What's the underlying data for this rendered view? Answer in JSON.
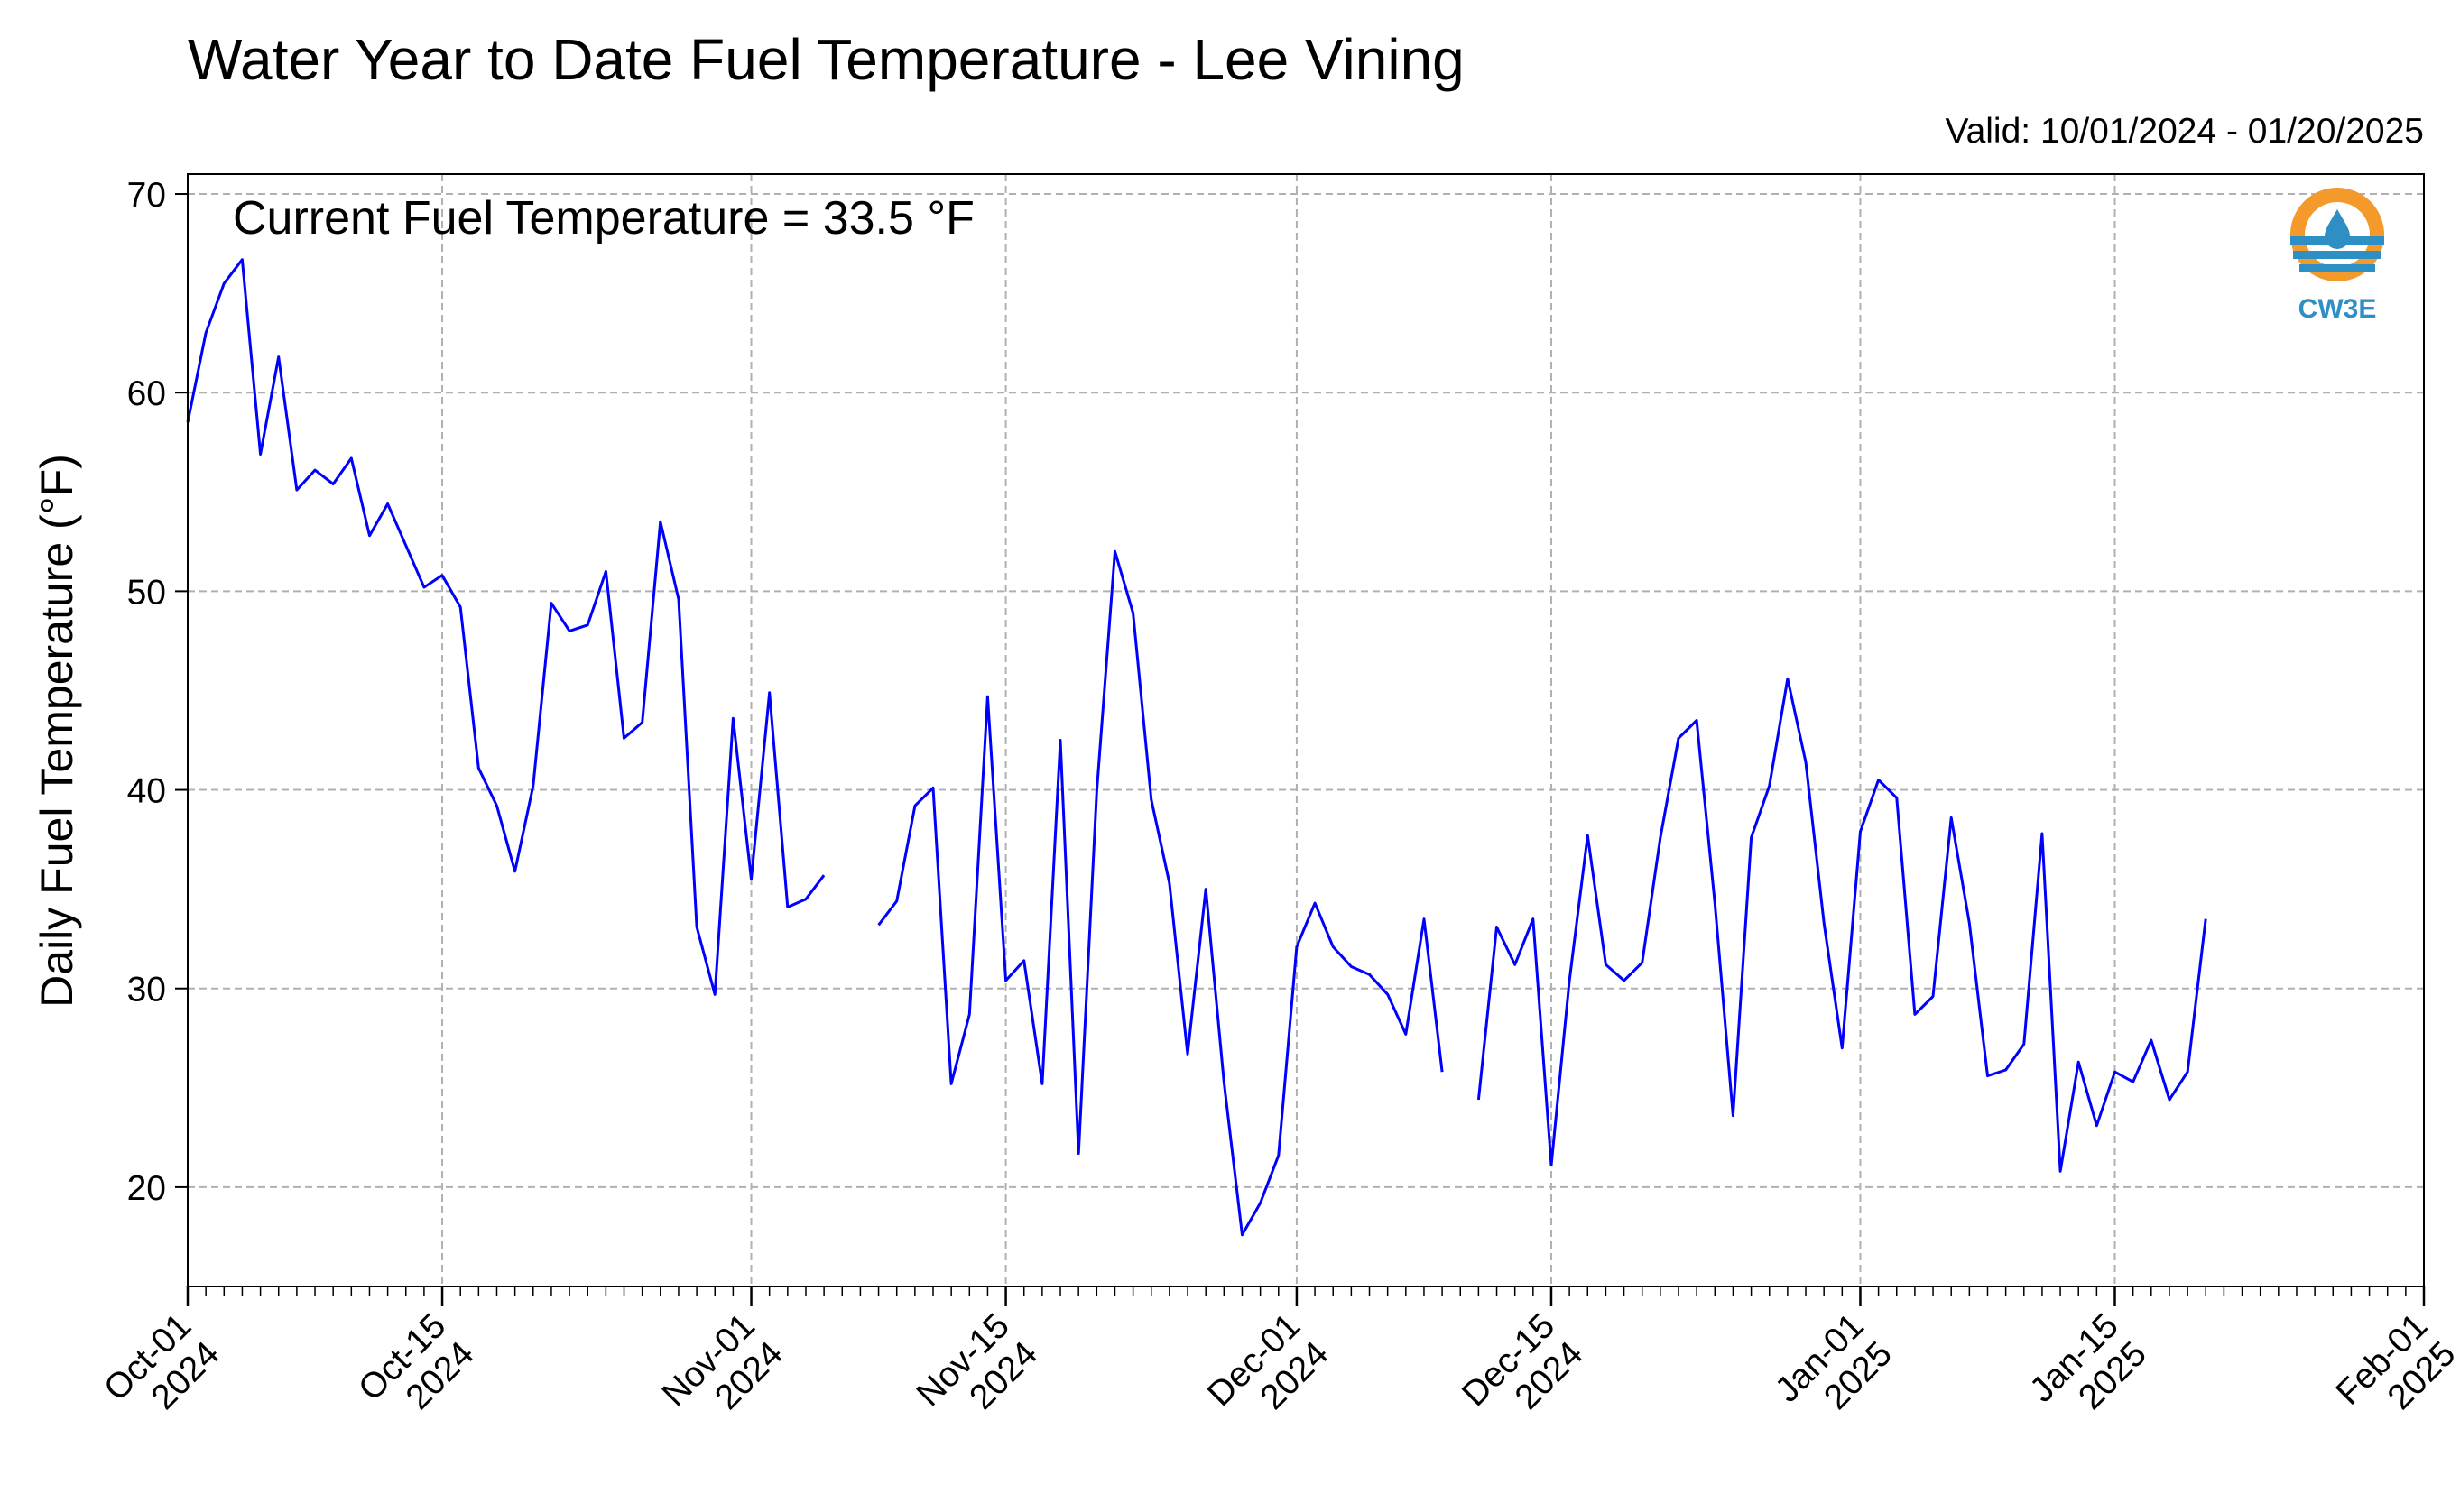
{
  "chart_data": {
    "type": "line",
    "title": "Water Year to Date Fuel Temperature - Lee Vining",
    "subtitle": "Valid: 10/01/2024 - 01/20/2025",
    "annotation": "Current Fuel Temperature = 33.5  °F",
    "ylabel": "Daily Fuel Temperature (°F)",
    "xlabel": "",
    "ylim": [
      15,
      71
    ],
    "xlim": [
      "2024-10-01",
      "2025-02-01"
    ],
    "grid": true,
    "yticks": [
      20,
      30,
      40,
      50,
      60,
      70
    ],
    "xticks": [
      {
        "date": "2024-10-01",
        "label": [
          "Oct-01",
          "2024"
        ]
      },
      {
        "date": "2024-10-15",
        "label": [
          "Oct-15",
          "2024"
        ]
      },
      {
        "date": "2024-11-01",
        "label": [
          "Nov-01",
          "2024"
        ]
      },
      {
        "date": "2024-11-15",
        "label": [
          "Nov-15",
          "2024"
        ]
      },
      {
        "date": "2024-12-01",
        "label": [
          "Dec-01",
          "2024"
        ]
      },
      {
        "date": "2024-12-15",
        "label": [
          "Dec-15",
          "2024"
        ]
      },
      {
        "date": "2025-01-01",
        "label": [
          "Jan-01",
          "2025"
        ]
      },
      {
        "date": "2025-01-15",
        "label": [
          "Jan-15",
          "2025"
        ]
      },
      {
        "date": "2025-02-01",
        "label": [
          "Feb-01",
          "2025"
        ]
      }
    ],
    "line_color": "#0000ff",
    "series": [
      {
        "x": [
          "2024-10-01",
          "2024-10-02",
          "2024-10-03",
          "2024-10-04",
          "2024-10-05",
          "2024-10-06",
          "2024-10-07",
          "2024-10-08",
          "2024-10-09",
          "2024-10-10",
          "2024-10-11",
          "2024-10-12",
          "2024-10-13",
          "2024-10-14",
          "2024-10-15",
          "2024-10-16",
          "2024-10-17",
          "2024-10-18",
          "2024-10-19",
          "2024-10-20",
          "2024-10-21",
          "2024-10-22",
          "2024-10-23",
          "2024-10-24",
          "2024-10-25",
          "2024-10-26",
          "2024-10-27",
          "2024-10-28",
          "2024-10-29",
          "2024-10-30",
          "2024-10-31",
          "2024-11-01",
          "2024-11-02",
          "2024-11-03",
          "2024-11-04",
          "2024-11-05",
          "2024-11-06",
          "2024-11-07",
          "2024-11-08",
          "2024-11-09",
          "2024-11-10",
          "2024-11-11",
          "2024-11-12",
          "2024-11-13",
          "2024-11-14",
          "2024-11-15",
          "2024-11-16",
          "2024-11-17",
          "2024-11-18",
          "2024-11-19",
          "2024-11-20",
          "2024-11-21",
          "2024-11-22",
          "2024-11-23",
          "2024-11-24",
          "2024-11-25",
          "2024-11-26",
          "2024-11-27",
          "2024-11-28",
          "2024-11-29",
          "2024-11-30",
          "2024-12-01",
          "2024-12-02",
          "2024-12-03",
          "2024-12-04",
          "2024-12-05",
          "2024-12-06",
          "2024-12-07",
          "2024-12-08",
          "2024-12-09",
          "2024-12-10",
          "2024-12-11",
          "2024-12-12",
          "2024-12-13",
          "2024-12-14",
          "2024-12-15",
          "2024-12-16",
          "2024-12-17",
          "2024-12-18",
          "2024-12-19",
          "2024-12-20",
          "2024-12-21",
          "2024-12-22",
          "2024-12-23",
          "2024-12-24",
          "2024-12-25",
          "2024-12-26",
          "2024-12-27",
          "2024-12-28",
          "2024-12-29",
          "2024-12-30",
          "2024-12-31",
          "2025-01-01",
          "2025-01-02",
          "2025-01-03",
          "2025-01-04",
          "2025-01-05",
          "2025-01-06",
          "2025-01-07",
          "2025-01-08",
          "2025-01-09",
          "2025-01-10",
          "2025-01-11",
          "2025-01-12",
          "2025-01-13",
          "2025-01-14",
          "2025-01-15",
          "2025-01-16",
          "2025-01-17",
          "2025-01-18",
          "2025-01-19",
          "2025-01-20"
        ],
        "values": [
          58.5,
          63.0,
          65.5,
          66.7,
          56.9,
          61.8,
          55.1,
          56.1,
          55.4,
          56.7,
          52.8,
          54.4,
          52.3,
          50.2,
          50.8,
          49.2,
          41.1,
          39.2,
          35.9,
          40.2,
          49.4,
          48.0,
          48.3,
          51.0,
          42.6,
          43.4,
          53.5,
          49.6,
          33.1,
          29.7,
          43.6,
          35.5,
          44.9,
          34.1,
          34.5,
          35.7,
          null,
          null,
          33.2,
          34.4,
          39.2,
          40.1,
          25.2,
          28.7,
          44.7,
          30.4,
          31.4,
          25.2,
          42.5,
          21.7,
          39.9,
          52.0,
          48.9,
          39.5,
          35.3,
          26.7,
          35.0,
          25.3,
          17.6,
          19.2,
          21.6,
          32.1,
          34.3,
          32.1,
          31.1,
          30.7,
          29.7,
          27.7,
          33.5,
          25.8,
          null,
          24.4,
          33.1,
          31.2,
          33.5,
          21.1,
          30.4,
          37.7,
          31.2,
          30.4,
          31.3,
          37.6,
          42.6,
          43.5,
          34.3,
          23.6,
          37.6,
          40.2,
          45.6,
          41.4,
          33.3,
          27.0,
          37.9,
          40.5,
          39.6,
          28.7,
          29.6,
          38.6,
          33.3,
          25.6,
          25.9,
          27.2,
          37.8,
          20.8,
          26.3,
          23.1,
          25.8,
          25.3,
          27.4,
          24.4,
          25.8,
          33.5
        ]
      }
    ]
  },
  "logo": {
    "text": "CW3E",
    "ring_color": "#f39a2b",
    "accent_color": "#2e8fc4"
  }
}
